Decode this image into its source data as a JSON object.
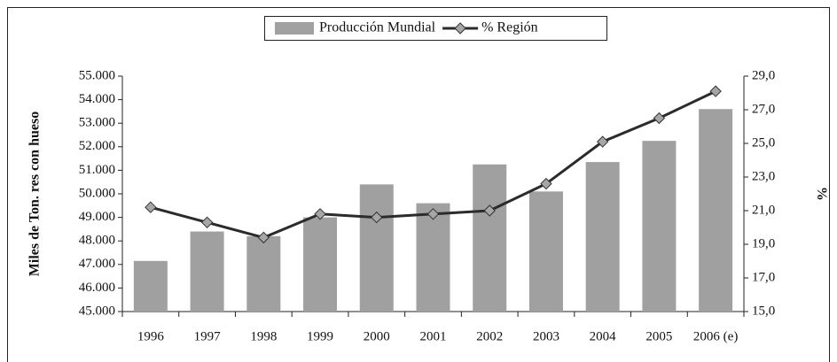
{
  "chart_data": {
    "type": "bar",
    "y_label": "Miles de Ton. res con hueso",
    "y2_label": "%",
    "categories": [
      "1996",
      "1997",
      "1998",
      "1999",
      "2000",
      "2001",
      "2002",
      "2003",
      "2004",
      "2005",
      "2006 (e)"
    ],
    "series": [
      {
        "name": "Producción Mundial",
        "type": "bar",
        "color": "#a0a0a0",
        "values": [
          47150,
          48400,
          48200,
          49000,
          50400,
          49600,
          51250,
          50100,
          51350,
          52250,
          53600
        ]
      },
      {
        "name": "% Región",
        "type": "line",
        "axis": "y2",
        "color": "#2b2b2b",
        "marker_color": "#a6a6a6",
        "values": [
          21.2,
          20.3,
          19.4,
          20.8,
          20.6,
          20.8,
          21.0,
          22.6,
          25.1,
          26.5,
          28.1
        ]
      }
    ],
    "ylim": [
      45000,
      55000
    ],
    "yticks": [
      {
        "value": 45000,
        "label": "45.000"
      },
      {
        "value": 46000,
        "label": "46.000"
      },
      {
        "value": 47000,
        "label": "47.000"
      },
      {
        "value": 48000,
        "label": "48.000"
      },
      {
        "value": 49000,
        "label": "49.000"
      },
      {
        "value": 50000,
        "label": "50.000"
      },
      {
        "value": 51000,
        "label": "51.000"
      },
      {
        "value": 52000,
        "label": "52.000"
      },
      {
        "value": 53000,
        "label": "53.000"
      },
      {
        "value": 54000,
        "label": "54.000"
      },
      {
        "value": 55000,
        "label": "55.000"
      }
    ],
    "y2lim": [
      15,
      29
    ],
    "y2ticks": [
      {
        "value": 15,
        "label": "15,0"
      },
      {
        "value": 17,
        "label": "17,0"
      },
      {
        "value": 19,
        "label": "19,0"
      },
      {
        "value": 21,
        "label": "21,0"
      },
      {
        "value": 23,
        "label": "23,0"
      },
      {
        "value": 25,
        "label": "25,0"
      },
      {
        "value": 27,
        "label": "27,0"
      },
      {
        "value": 29,
        "label": "29,0"
      }
    ],
    "legend": "top",
    "grid": false
  }
}
